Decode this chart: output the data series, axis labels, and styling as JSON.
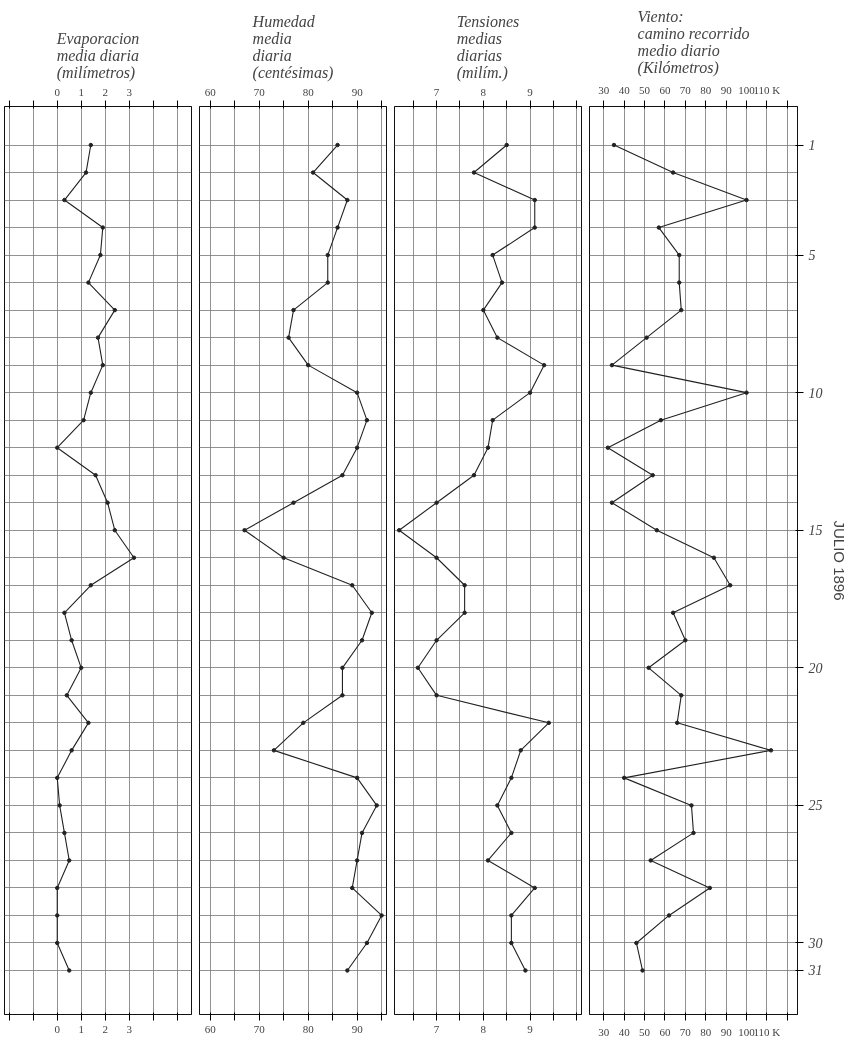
{
  "chart_data": [
    {
      "type": "line",
      "orientation": "horizontal",
      "title": "Evaporacion\nmedia diaria\n(milímetros)",
      "categories": [
        "1",
        null,
        null,
        null,
        "5",
        null,
        null,
        null,
        null,
        "10",
        null,
        null,
        null,
        null,
        "15",
        null,
        null,
        null,
        null,
        "20",
        null,
        null,
        null,
        null,
        "25",
        null,
        null,
        null,
        null,
        "30",
        "31"
      ],
      "tick_labels": "x",
      "grid": true,
      "marker": "circle",
      "line_style": "solid",
      "xlim": [
        -2.2,
        5.6
      ],
      "xticks": [
        {
          "value": -2,
          "label": null
        },
        {
          "value": -1,
          "label": null
        },
        0,
        1,
        2,
        3,
        {
          "value": 4,
          "label": null
        },
        {
          "value": 5,
          "label": null
        }
      ],
      "x2lim": [
        -2.2,
        5.6
      ],
      "x2ticks": [
        {
          "value": -2,
          "label": null
        },
        {
          "value": -1,
          "label": null
        },
        0,
        1,
        2,
        3,
        {
          "value": 4,
          "label": null
        },
        {
          "value": 5,
          "label": null
        }
      ],
      "series": [
        {
          "color": "#222222",
          "values": [
            1.4,
            1.2,
            0.3,
            1.9,
            1.8,
            1.3,
            2.4,
            1.7,
            1.9,
            1.4,
            1.1,
            0.0,
            1.6,
            2.1,
            2.4,
            3.2,
            1.4,
            0.3,
            0.6,
            1.0,
            0.4,
            1.3,
            0.6,
            0.0,
            0.1,
            0.3,
            0.5,
            0.0,
            0.0,
            0.0,
            0.5
          ]
        }
      ]
    },
    {
      "type": "line",
      "orientation": "horizontal",
      "title": "Humedad\nmedia\ndiaria\n(centésimas)",
      "categories": [
        "1",
        null,
        null,
        null,
        "5",
        null,
        null,
        null,
        null,
        "10",
        null,
        null,
        null,
        null,
        "15",
        null,
        null,
        null,
        null,
        "20",
        null,
        null,
        null,
        null,
        "25",
        null,
        null,
        null,
        null,
        "30",
        "31"
      ],
      "tick_labels": "x",
      "grid": true,
      "marker": "circle",
      "line_style": "solid",
      "xlim": [
        57.8,
        96
      ],
      "xticks": [
        60,
        {
          "value": 65,
          "label": null
        },
        70,
        {
          "value": 75,
          "label": null
        },
        80,
        {
          "value": 85,
          "label": null
        },
        90,
        {
          "value": 95,
          "label": null
        }
      ],
      "x2lim": [
        57.8,
        96
      ],
      "x2ticks": [
        60,
        {
          "value": 65,
          "label": null
        },
        70,
        {
          "value": 75,
          "label": null
        },
        80,
        {
          "value": 85,
          "label": null
        },
        90,
        {
          "value": 95,
          "label": null
        }
      ],
      "series": [
        {
          "color": "#222222",
          "values": [
            86,
            81,
            88,
            86,
            84,
            84,
            77,
            76,
            80,
            90,
            92,
            90,
            87,
            77,
            67,
            75,
            89,
            93,
            91,
            87,
            87,
            79,
            73,
            90,
            94,
            91,
            90,
            89,
            95,
            92,
            88
          ]
        }
      ]
    },
    {
      "type": "line",
      "orientation": "horizontal",
      "title": "Tensiones\nmedias\ndiarias\n(milím.)",
      "categories": [
        "1",
        null,
        null,
        null,
        "5",
        null,
        null,
        null,
        null,
        "10",
        null,
        null,
        null,
        null,
        "15",
        null,
        null,
        null,
        null,
        "20",
        null,
        null,
        null,
        null,
        "25",
        null,
        null,
        null,
        null,
        "30",
        "31"
      ],
      "tick_labels": "x",
      "grid": true,
      "marker": "circle",
      "line_style": "solid",
      "xlim": [
        6.1,
        10.1
      ],
      "xticks": [
        {
          "value": 6.5,
          "label": null
        },
        7,
        {
          "value": 7.5,
          "label": null
        },
        8,
        {
          "value": 8.5,
          "label": null
        },
        9,
        {
          "value": 9.5,
          "label": null
        },
        {
          "value": 10,
          "label": null
        }
      ],
      "x2lim": [
        6.1,
        10.1
      ],
      "x2ticks": [
        {
          "value": 6.5,
          "label": null
        },
        7,
        {
          "value": 7.5,
          "label": null
        },
        8,
        {
          "value": 8.5,
          "label": null
        },
        9,
        {
          "value": 9.5,
          "label": null
        },
        {
          "value": 10,
          "label": null
        }
      ],
      "series": [
        {
          "color": "#222222",
          "values": [
            8.5,
            7.8,
            9.1,
            9.1,
            8.2,
            8.4,
            8.0,
            8.3,
            9.3,
            9.0,
            8.2,
            8.1,
            7.8,
            7.0,
            6.2,
            7.0,
            7.6,
            7.6,
            7.0,
            6.6,
            7.0,
            9.4,
            8.8,
            8.6,
            8.3,
            8.6,
            8.1,
            9.1,
            8.6,
            8.6,
            8.9
          ]
        }
      ]
    },
    {
      "type": "line",
      "orientation": "horizontal",
      "title": "Viento:\ncamino recorrido\nmedio diario\n(Kilómetros)",
      "ylabel": "JULIO 1896",
      "categories": [
        "1",
        null,
        null,
        null,
        "5",
        null,
        null,
        null,
        null,
        "10",
        null,
        null,
        null,
        null,
        "15",
        null,
        null,
        null,
        null,
        "20",
        null,
        null,
        null,
        null,
        "25",
        null,
        null,
        null,
        null,
        "30",
        "31"
      ],
      "grid": true,
      "marker": "circle",
      "line_style": "solid",
      "xlim": [
        23,
        125
      ],
      "xticks": [
        30,
        40,
        50,
        60,
        70,
        80,
        90,
        100,
        {
          "value": 110,
          "label": "110 K"
        },
        {
          "value": 120,
          "label": null
        }
      ],
      "x2lim": [
        23,
        125
      ],
      "x2ticks": [
        30,
        40,
        50,
        60,
        70,
        80,
        90,
        100,
        {
          "value": 110,
          "label": "110 K"
        },
        {
          "value": 120,
          "label": null
        }
      ],
      "series": [
        {
          "color": "#222222",
          "values": [
            35,
            64,
            100,
            57,
            67,
            67,
            68,
            51,
            34,
            100,
            58,
            32,
            54,
            34,
            56,
            84,
            92,
            64,
            70,
            52,
            68,
            66,
            112,
            40,
            73,
            74,
            53,
            82,
            62,
            46,
            49
          ]
        }
      ]
    }
  ]
}
